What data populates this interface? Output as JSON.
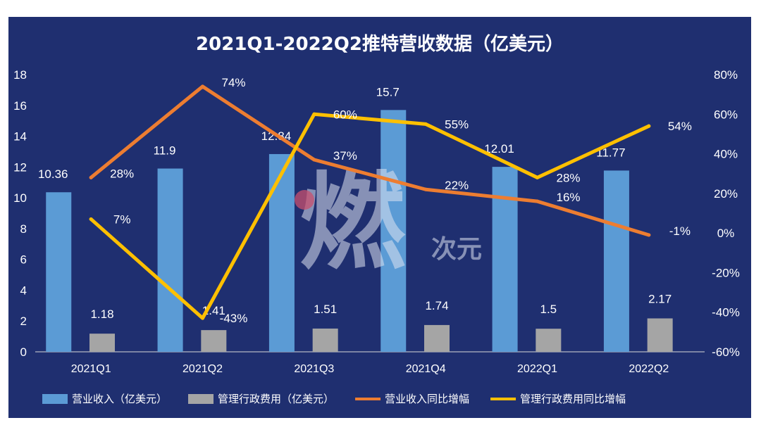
{
  "chart_data": {
    "title": "2021Q1-2022Q2推特营收数据（亿美元）",
    "type": "bar+line",
    "categories": [
      "2021Q1",
      "2021Q2",
      "2021Q3",
      "2021Q4",
      "2022Q1",
      "2022Q2"
    ],
    "left_axis": {
      "ylim": [
        0,
        18
      ],
      "ticks": [
        "0",
        "2",
        "4",
        "6",
        "8",
        "10",
        "12",
        "14",
        "16",
        "18"
      ]
    },
    "right_axis": {
      "ylim": [
        -60,
        80
      ],
      "ticks": [
        "-60%",
        "-40%",
        "-20%",
        "0%",
        "20%",
        "40%",
        "60%",
        "80%"
      ]
    },
    "bar_series": [
      {
        "name": "营业收入（亿美元）",
        "color": "#5b9bd5",
        "values": [
          10.36,
          11.9,
          12.84,
          15.7,
          12.01,
          11.77
        ],
        "labels": [
          "10.36",
          "11.9",
          "12.84",
          "15.7",
          "12.01",
          "11.77"
        ]
      },
      {
        "name": "管理行政费用（亿美元）",
        "color": "#a5a5a5",
        "values": [
          1.18,
          1.41,
          1.51,
          1.74,
          1.5,
          2.17
        ],
        "labels": [
          "1.18",
          "1.41",
          "1.51",
          "1.74",
          "1.5",
          "2.17"
        ]
      }
    ],
    "line_series": [
      {
        "name": "营业收入同比增幅",
        "color": "#ed7d31",
        "values": [
          28,
          74,
          37,
          22,
          16,
          -1
        ],
        "labels": [
          "28%",
          "74%",
          "37%",
          "22%",
          "16%",
          "-1%"
        ]
      },
      {
        "name": "管理行政费用同比增幅",
        "color": "#ffc000",
        "values": [
          7,
          -43,
          60,
          55,
          28,
          54
        ],
        "labels": [
          "7%",
          "-43%",
          "60%",
          "55%",
          "28%",
          "54%"
        ]
      }
    ],
    "legend_position": "bottom",
    "grid": false
  },
  "watermark_text": "燃次元"
}
